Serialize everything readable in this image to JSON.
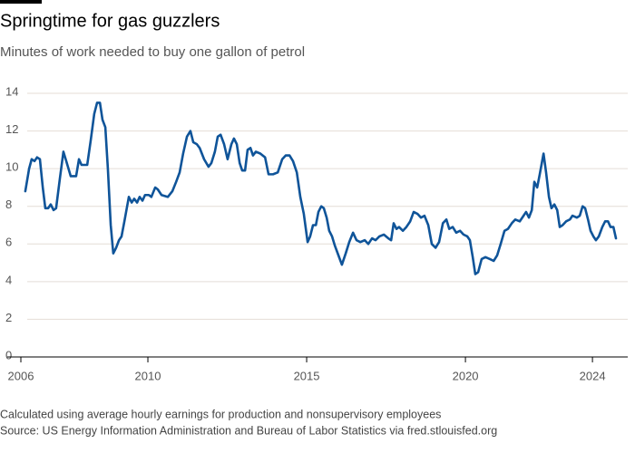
{
  "chart_data": {
    "type": "line",
    "title": "Springtime for gas guzzlers",
    "subtitle": "Minutes of work needed to buy one gallon of petrol",
    "notes": [
      "Calculated using average hourly earnings for production and nonsupervisory employees",
      "Source: US Energy Information Administration and Bureau of Labor Statistics via fred.stlouisfed.org"
    ],
    "x": [
      2006.14,
      2006.26,
      2006.34,
      2006.43,
      2006.51,
      2006.6,
      2006.69,
      2006.77,
      2006.86,
      2006.94,
      2007.03,
      2007.11,
      2007.23,
      2007.34,
      2007.43,
      2007.57,
      2007.74,
      2007.83,
      2007.91,
      2008.09,
      2008.2,
      2008.31,
      2008.4,
      2008.49,
      2008.57,
      2008.66,
      2008.74,
      2008.83,
      2008.91,
      2009.0,
      2009.09,
      2009.17,
      2009.26,
      2009.4,
      2009.49,
      2009.57,
      2009.66,
      2009.74,
      2009.83,
      2009.91,
      2010.03,
      2010.11,
      2010.23,
      2010.31,
      2010.43,
      2010.63,
      2010.77,
      2010.89,
      2011.0,
      2011.11,
      2011.23,
      2011.34,
      2011.43,
      2011.54,
      2011.63,
      2011.77,
      2011.91,
      2012.0,
      2012.11,
      2012.2,
      2012.29,
      2012.4,
      2012.51,
      2012.63,
      2012.71,
      2012.8,
      2012.89,
      2012.97,
      2013.06,
      2013.14,
      2013.23,
      2013.31,
      2013.4,
      2013.54,
      2013.69,
      2013.8,
      2013.94,
      2014.09,
      2014.23,
      2014.34,
      2014.46,
      2014.57,
      2014.69,
      2014.8,
      2014.91,
      2015.03,
      2015.11,
      2015.2,
      2015.29,
      2015.37,
      2015.46,
      2015.54,
      2015.63,
      2015.71,
      2015.8,
      2015.89,
      2016.0,
      2016.11,
      2016.23,
      2016.34,
      2016.46,
      2016.57,
      2016.69,
      2016.83,
      2016.94,
      2017.06,
      2017.17,
      2017.29,
      2017.43,
      2017.57,
      2017.66,
      2017.74,
      2017.83,
      2017.91,
      2018.03,
      2018.14,
      2018.26,
      2018.37,
      2018.49,
      2018.6,
      2018.71,
      2018.83,
      2018.94,
      2019.06,
      2019.17,
      2019.29,
      2019.4,
      2019.49,
      2019.6,
      2019.71,
      2019.83,
      2019.94,
      2020.06,
      2020.14,
      2020.23,
      2020.31,
      2020.4,
      2020.51,
      2020.63,
      2020.77,
      2020.89,
      2021.0,
      2021.11,
      2021.23,
      2021.34,
      2021.46,
      2021.57,
      2021.71,
      2021.83,
      2021.91,
      2022.0,
      2022.09,
      2022.17,
      2022.26,
      2022.34,
      2022.46,
      2022.54,
      2022.63,
      2022.71,
      2022.8,
      2022.89,
      2022.97,
      2023.06,
      2023.17,
      2023.29,
      2023.37,
      2023.51,
      2023.6,
      2023.69,
      2023.77,
      2023.86,
      2023.94,
      2024.03,
      2024.11,
      2024.2,
      2024.31,
      2024.4,
      2024.49,
      2024.57,
      2024.66,
      2024.74
    ],
    "series": [
      {
        "color": "#0f5499",
        "values": [
          8.8,
          10.0,
          10.5,
          10.4,
          10.6,
          10.5,
          9.0,
          7.9,
          7.9,
          8.1,
          7.8,
          7.9,
          9.5,
          10.9,
          10.4,
          9.6,
          9.6,
          10.5,
          10.2,
          10.2,
          11.5,
          12.9,
          13.5,
          13.5,
          12.6,
          12.2,
          10.0,
          7.0,
          5.5,
          5.8,
          6.2,
          6.4,
          7.2,
          8.5,
          8.2,
          8.4,
          8.2,
          8.5,
          8.3,
          8.6,
          8.6,
          8.5,
          9.0,
          8.9,
          8.6,
          8.5,
          8.8,
          9.3,
          9.8,
          10.8,
          11.7,
          12.0,
          11.4,
          11.3,
          11.1,
          10.5,
          10.1,
          10.3,
          10.9,
          11.7,
          11.8,
          11.3,
          10.5,
          11.3,
          11.6,
          11.3,
          10.3,
          9.9,
          9.9,
          11.0,
          11.1,
          10.7,
          10.9,
          10.8,
          10.6,
          9.7,
          9.7,
          9.8,
          10.5,
          10.7,
          10.7,
          10.4,
          9.8,
          8.5,
          7.6,
          6.1,
          6.4,
          7.0,
          7.0,
          7.7,
          8.0,
          7.9,
          7.4,
          6.7,
          6.4,
          5.9,
          5.4,
          4.9,
          5.5,
          6.1,
          6.6,
          6.2,
          6.1,
          6.2,
          6.0,
          6.3,
          6.2,
          6.4,
          6.5,
          6.3,
          6.2,
          7.1,
          6.8,
          6.9,
          6.7,
          6.9,
          7.2,
          7.7,
          7.6,
          7.4,
          7.5,
          7.0,
          6.0,
          5.8,
          6.1,
          7.1,
          7.3,
          6.8,
          6.9,
          6.6,
          6.7,
          6.5,
          6.4,
          6.2,
          5.3,
          4.4,
          4.5,
          5.2,
          5.3,
          5.2,
          5.1,
          5.4,
          6.0,
          6.7,
          6.8,
          7.1,
          7.3,
          7.2,
          7.5,
          7.7,
          7.4,
          7.8,
          9.3,
          9.0,
          9.7,
          10.8,
          9.8,
          8.5,
          7.9,
          8.1,
          7.8,
          6.9,
          7.0,
          7.2,
          7.3,
          7.5,
          7.4,
          7.5,
          8.0,
          7.9,
          7.3,
          6.7,
          6.4,
          6.2,
          6.4,
          6.9,
          7.2,
          7.2,
          6.9,
          6.9,
          6.3
        ]
      }
    ],
    "xlim": [
      2006,
      2024.74
    ],
    "xticks": [
      2006,
      2010,
      2015,
      2020,
      2024
    ],
    "ylim": [
      0,
      14
    ],
    "yticks": [
      0,
      2,
      4,
      6,
      8,
      10,
      12,
      14
    ],
    "grid": true
  }
}
